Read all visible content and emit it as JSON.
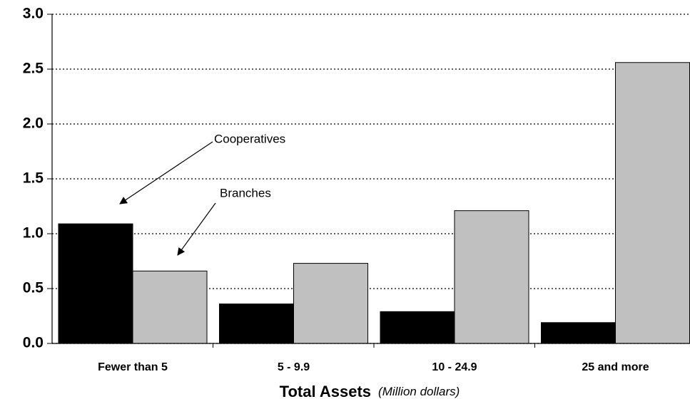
{
  "chart_data": {
    "type": "bar",
    "xlabel": "Total Assets",
    "xlabel_unit": "(Million dollars)",
    "categories": [
      "Fewer than 5",
      "5 - 9.9",
      "10 - 24.9",
      "25 and more"
    ],
    "series": [
      {
        "name": "Cooperatives",
        "color": "#000000",
        "values": [
          1.09,
          0.36,
          0.29,
          0.19
        ]
      },
      {
        "name": "Branches",
        "color": "#c0c0c0",
        "values": [
          0.66,
          0.73,
          1.21,
          2.56
        ]
      }
    ],
    "ylim": [
      0,
      3
    ],
    "yticks": [
      {
        "value": 0,
        "label": "0.0"
      },
      0.5,
      {
        "value": 1,
        "label": "1.0"
      },
      1.5,
      {
        "value": 2,
        "label": "2.0"
      },
      2.5,
      {
        "value": 3,
        "label": "3.0"
      }
    ],
    "grid": true
  }
}
